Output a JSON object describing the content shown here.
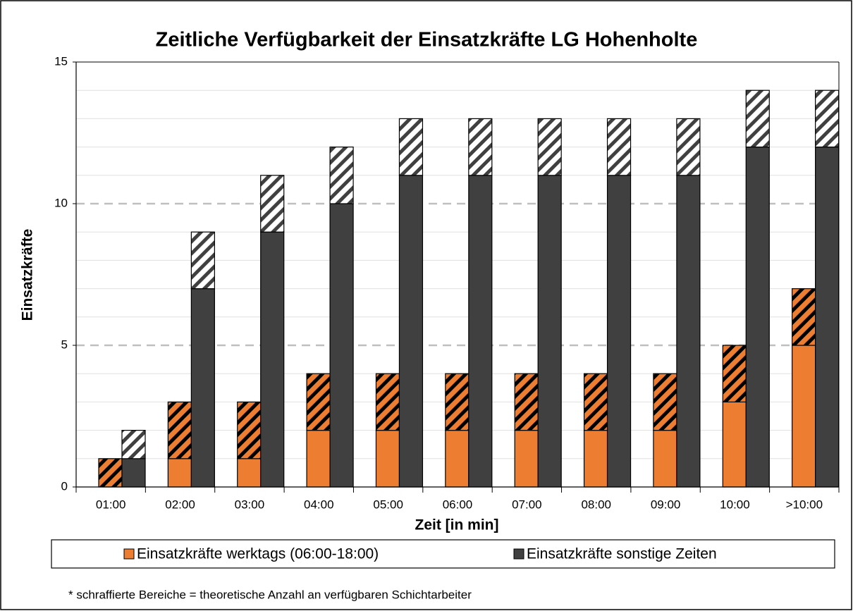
{
  "chart_data": {
    "type": "grouped_stacked_bar",
    "title": "Zeitliche Verfügbarkeit der Einsatzkräfte LG Hohenholte",
    "x_label": "Zeit [in min]",
    "y_label": "Einsatzkräfte",
    "footnote": "* schraffierte Bereiche = theoretische Anzahl an verfügbaren Schichtarbeiter",
    "categories": [
      "01:00",
      "02:00",
      "03:00",
      "04:00",
      "05:00",
      "06:00",
      "07:00",
      "08:00",
      "09:00",
      "10:00",
      ">10:00"
    ],
    "series": [
      {
        "name": "Einsatzkräfte werktags (06:00-18:00)",
        "color": "#ed7d31",
        "hatch_color": "#000000",
        "values": [
          0,
          1,
          1,
          2,
          2,
          2,
          2,
          2,
          2,
          3,
          5
        ],
        "hatched_values": [
          1,
          2,
          2,
          2,
          2,
          2,
          2,
          2,
          2,
          2,
          2
        ]
      },
      {
        "name": "Einsatzkräfte sonstige Zeiten",
        "color": "#404040",
        "hatch_color": "#ffffff",
        "values": [
          1,
          7,
          9,
          10,
          11,
          11,
          11,
          11,
          11,
          12,
          12
        ],
        "hatched_values": [
          1,
          2,
          2,
          2,
          2,
          2,
          2,
          2,
          2,
          2,
          2
        ]
      }
    ],
    "ylim": [
      0,
      15
    ],
    "yticks": [
      0,
      5,
      10,
      15
    ],
    "minor_yticks": [
      1,
      2,
      3,
      4,
      6,
      7,
      8,
      9,
      11,
      12,
      13,
      14
    ],
    "grid": true,
    "legend": "bottom"
  }
}
